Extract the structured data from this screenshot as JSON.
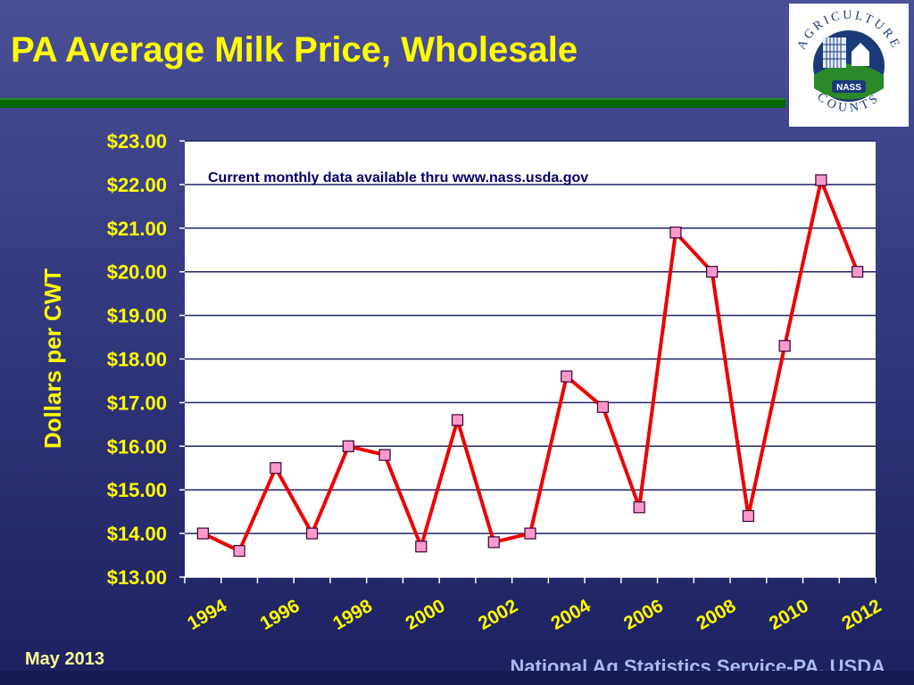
{
  "slide": {
    "title": "PA Average Milk Price, Wholesale",
    "footer_left": "May 2013",
    "footer_right": "National Ag Statistics Service-PA, USDA"
  },
  "logo": {
    "top_text": "AGRICULTURE",
    "bottom_text": "COUNTS",
    "badge_text": "NASS"
  },
  "colors": {
    "title": "#ffff00",
    "axis_text": "#ffff00",
    "line": "#ee0000",
    "marker": "#ff99cc",
    "plot_bg": "#ffffff"
  },
  "chart_data": {
    "type": "line",
    "title": "",
    "annotation": "Current monthly data available thru www.nass.usda.gov",
    "xlabel": "",
    "ylabel": "Dollars per CWT",
    "ylim": [
      13,
      23
    ],
    "y_ticks": [
      "$13.00",
      "$14.00",
      "$15.00",
      "$16.00",
      "$17.00",
      "$18.00",
      "$19.00",
      "$20.00",
      "$21.00",
      "$22.00",
      "$23.00"
    ],
    "x_tick_labels": [
      "1994",
      "1996",
      "1998",
      "2000",
      "2002",
      "2004",
      "2006",
      "2008",
      "2010",
      "2012"
    ],
    "grid": true,
    "legend": "none",
    "series": [
      {
        "x": [
          1994,
          1995,
          1996,
          1997,
          1998,
          1999,
          2000,
          2001,
          2002,
          2003,
          2004,
          2005,
          2006,
          2007,
          2008,
          2009,
          2010,
          2011,
          2012
        ],
        "values": [
          14.0,
          13.6,
          15.5,
          14.0,
          16.0,
          15.8,
          13.7,
          16.6,
          13.8,
          14.0,
          17.6,
          16.9,
          14.6,
          20.9,
          20.0,
          14.4,
          18.3,
          22.1,
          20.0
        ]
      }
    ]
  }
}
